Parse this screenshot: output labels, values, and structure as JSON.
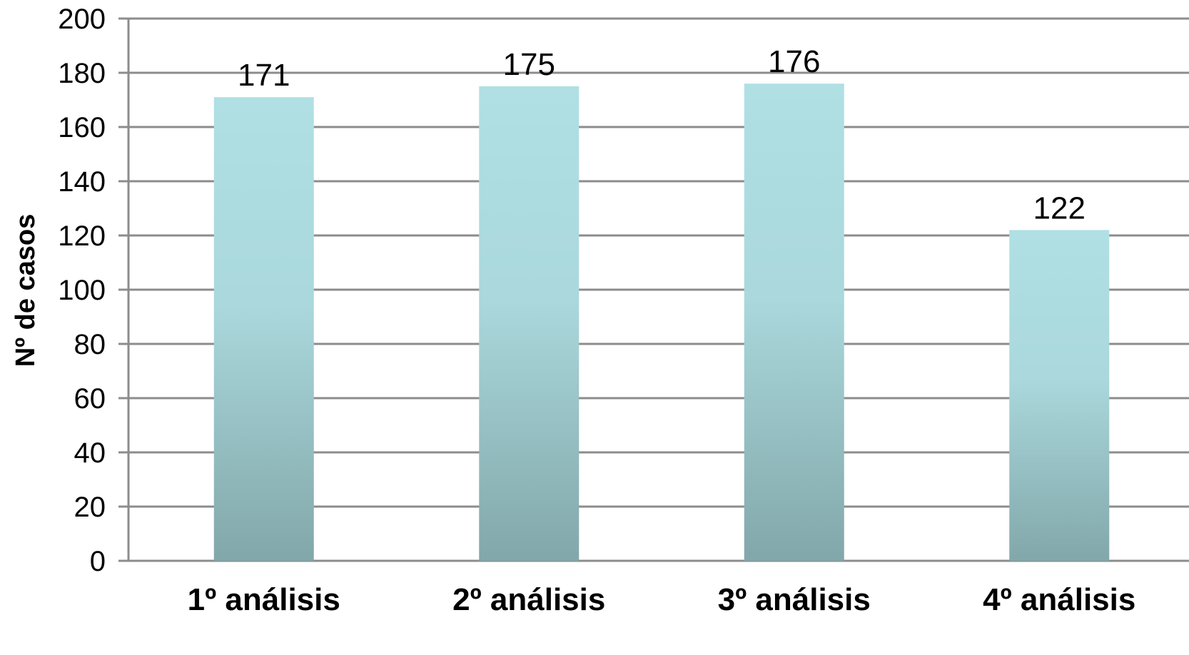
{
  "chart_data": {
    "type": "bar",
    "categories": [
      "1º análisis",
      "2º análisis",
      "3º análisis",
      "4º análisis"
    ],
    "values": [
      171,
      175,
      176,
      122
    ],
    "data_labels": [
      "171",
      "175",
      "176",
      "122"
    ],
    "title": "",
    "xlabel": "",
    "ylabel": "Nº de casos",
    "ylim": [
      0,
      200
    ],
    "yticks": [
      0,
      20,
      40,
      60,
      80,
      100,
      120,
      140,
      160,
      180,
      200
    ],
    "ytick_labels": [
      "0",
      "20",
      "40",
      "60",
      "80",
      "100",
      "120",
      "140",
      "160",
      "180",
      "200"
    ],
    "grid": true,
    "legend": "none",
    "colors": {
      "bar_top": "#b0e0e4",
      "bar_bottom": "#82a7aa",
      "grid": "#8c8c8c",
      "axis": "#8c8c8c",
      "text": "#000000"
    }
  }
}
